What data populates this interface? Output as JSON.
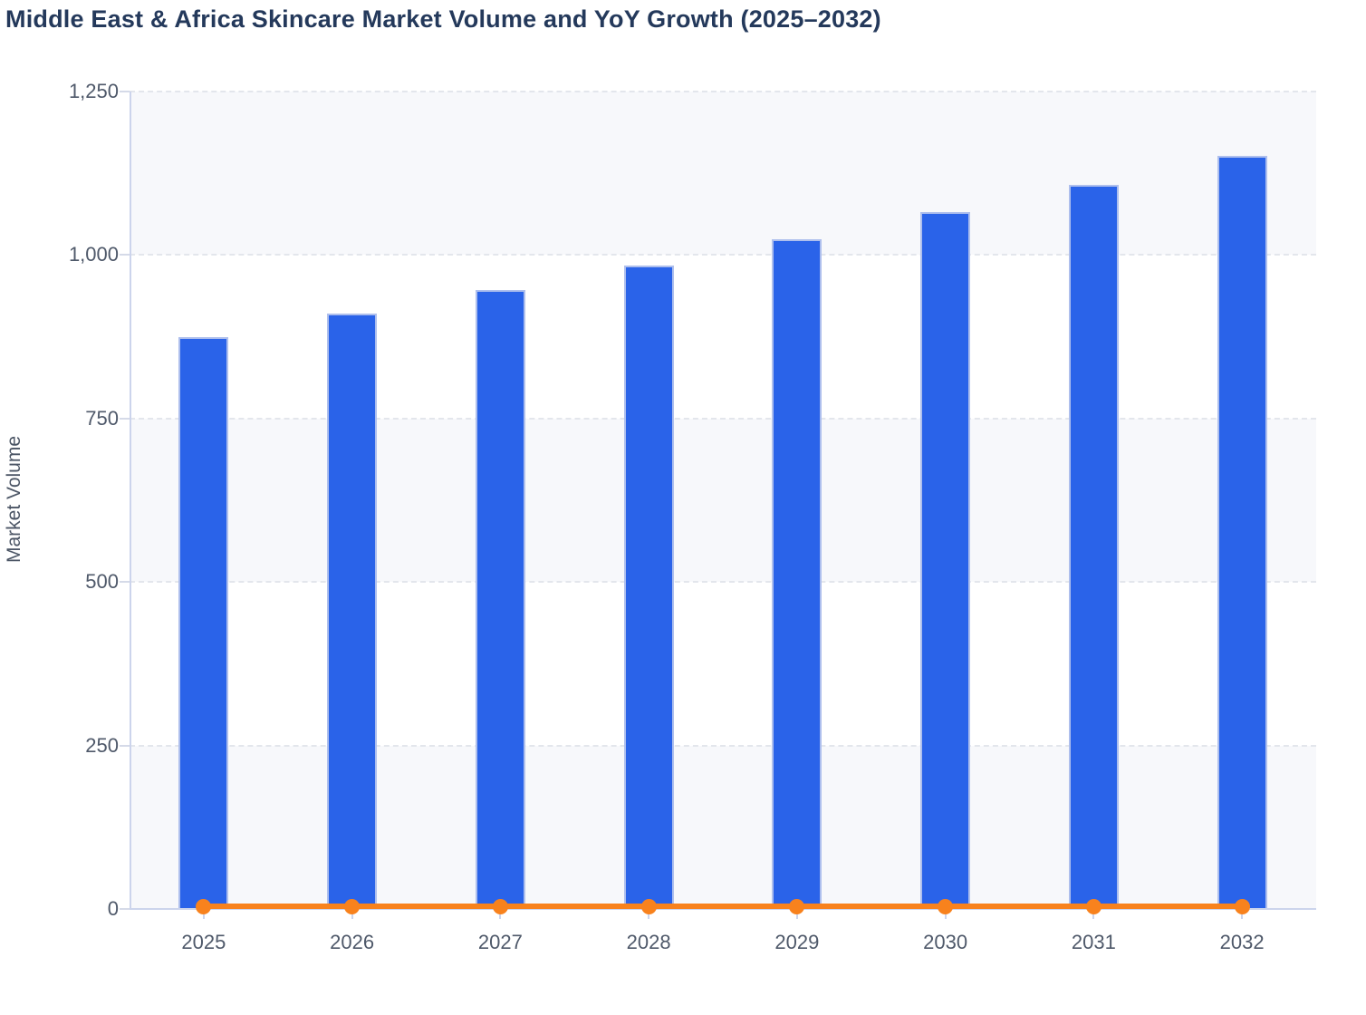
{
  "chart_data": {
    "type": "bar",
    "title": "Middle East & Africa Skincare Market Volume and YoY Growth (2025–2032)",
    "ylabel": "Market Volume",
    "xlabel": "",
    "categories": [
      "2025",
      "2026",
      "2027",
      "2028",
      "2029",
      "2030",
      "2031",
      "2032"
    ],
    "series": [
      {
        "name": "Market Volume",
        "type": "bar",
        "values": [
          875,
          910,
          946,
          984,
          1024,
          1065,
          1107,
          1151
        ]
      },
      {
        "name": "YoY Growth",
        "type": "line",
        "values": [
          4,
          4,
          4,
          4,
          4,
          4,
          4,
          4
        ],
        "note": "plotted against the left axis, so the line sits flat at the zero baseline; no secondary axis labels are shown"
      }
    ],
    "ylim": [
      0,
      1250
    ],
    "yticks": [
      {
        "value": 0,
        "label": "0"
      },
      {
        "value": 250,
        "label": "250"
      },
      {
        "value": 500,
        "label": "500"
      },
      {
        "value": 750,
        "label": "750"
      },
      {
        "value": 1000,
        "label": "1,000"
      },
      {
        "value": 1250,
        "label": "1,250"
      }
    ],
    "grid": "horizontal dashed gridlines with alternating shaded bands",
    "legend_position": "none"
  },
  "colors": {
    "bar_fill": "#2a63e9",
    "bar_stroke": "#aebfed",
    "line_orange": "#f8821d",
    "band_fill": "#f7f8fb",
    "grid_dash": "#e3e6ec",
    "axis_line": "#ccd4ec",
    "tick_text": "#4f596a",
    "title_text": "#24395b"
  }
}
